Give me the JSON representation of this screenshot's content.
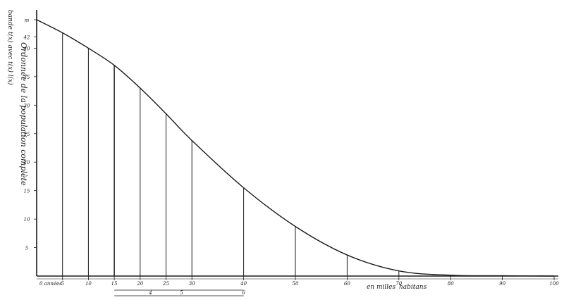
{
  "chart_data": {
    "type": "line",
    "title": "",
    "ylabel": "Ordonnée de la population complète",
    "ylabel_left": "bande t(x) avec t(x) l(x)",
    "xlabel_parts": [
      "en milles",
      "habitans"
    ],
    "x_origin_label": "0 années",
    "x_ticks": [
      "5",
      "10",
      "15",
      "20",
      "25",
      "30",
      "40",
      "50",
      "60",
      "70",
      "80",
      "90",
      "100"
    ],
    "y_ticks": [
      "m",
      "42",
      "40",
      "35",
      "30",
      "25",
      "20",
      "15",
      "10",
      "5"
    ],
    "bottom_marks": [
      "4",
      "5",
      "6"
    ],
    "xlim": [
      0,
      100
    ],
    "ylim": [
      0,
      45
    ],
    "series": [
      {
        "x": [
          0,
          5,
          10,
          15,
          20,
          25,
          30,
          40,
          50,
          60,
          70,
          80,
          90,
          100
        ],
        "y": [
          45,
          42.7,
          40.0,
          37.0,
          33.0,
          28.5,
          23.8,
          15.5,
          8.7,
          3.7,
          0.9,
          0.15,
          0.05,
          0
        ]
      }
    ],
    "ordinates_at": [
      5,
      10,
      15,
      20,
      25,
      30,
      40,
      50,
      60,
      70
    ],
    "grid": false
  }
}
